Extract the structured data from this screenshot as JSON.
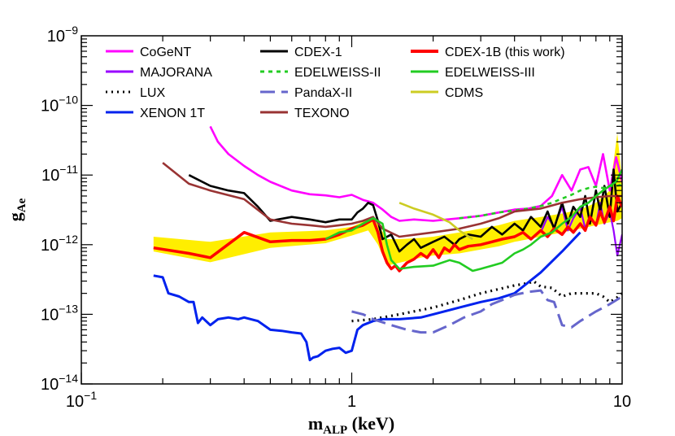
{
  "chart_data": {
    "type": "line",
    "title": "",
    "xscale": "log",
    "yscale": "log",
    "xlim": [
      0.1,
      10
    ],
    "ylim": [
      1e-14,
      1e-09
    ],
    "x_ticks": [
      {
        "value": 0.1,
        "base": "10",
        "exp": "−1"
      },
      {
        "value": 1,
        "base": "1",
        "exp": ""
      },
      {
        "value": 10,
        "base": "10",
        "exp": ""
      }
    ],
    "y_ticks": [
      {
        "value": 1e-14,
        "base": "10",
        "exp": "−14"
      },
      {
        "value": 1e-13,
        "base": "10",
        "exp": "−13"
      },
      {
        "value": 1e-12,
        "base": "10",
        "exp": "−12"
      },
      {
        "value": 1e-11,
        "base": "10",
        "exp": "−11"
      },
      {
        "value": 1e-10,
        "base": "10",
        "exp": "−10"
      },
      {
        "value": 1e-09,
        "base": "10",
        "exp": "−9"
      }
    ],
    "xlabel": {
      "main": "m",
      "sub": "ALP",
      "unit": " (keV)"
    },
    "ylabel": {
      "main": "g",
      "sub": "Ae"
    },
    "legend_position": "top",
    "band": {
      "name": "CDEX-1B expected sensitivity band",
      "color": "#ffee00",
      "x": [
        0.185,
        0.3,
        0.5,
        0.8,
        1.0,
        1.15,
        1.25,
        1.35,
        1.5,
        1.8,
        2.0,
        2.5,
        3.0,
        3.5,
        4.0,
        5.0,
        6.0,
        7.0,
        8.0,
        9.0,
        9.6,
        10.0
      ],
      "lower": [
        8e-13,
        5.6e-13,
        9e-13,
        1.05e-12,
        1.35e-12,
        1.6e-12,
        1e-12,
        5e-13,
        5.5e-13,
        6.5e-13,
        7e-13,
        7.5e-13,
        8.5e-13,
        9.5e-13,
        1.1e-12,
        1.3e-12,
        1.5e-12,
        1.7e-12,
        1.9e-12,
        2.1e-12,
        2.2e-12,
        2.4e-12
      ],
      "upper": [
        1.3e-12,
        1.1e-12,
        1.5e-12,
        1.6e-12,
        1.8e-12,
        2.3e-12,
        2e-12,
        1.2e-12,
        1.2e-12,
        1.25e-12,
        1.3e-12,
        1.5e-12,
        1.7e-12,
        1.9e-12,
        2.2e-12,
        2.5e-12,
        2.8e-12,
        3.2e-12,
        4e-12,
        6e-12,
        4e-11,
        8e-12
      ]
    },
    "series": [
      {
        "name": "CoGeNT",
        "color": "#ff00ff",
        "dash": "solid",
        "x": [
          0.3,
          0.32,
          0.35,
          0.4,
          0.45,
          0.5,
          0.6,
          0.7,
          0.8,
          0.9,
          1.0,
          1.1,
          1.2,
          1.3,
          1.4,
          1.5,
          1.7,
          2.0,
          2.5,
          3.0,
          3.5,
          4.0,
          4.5,
          5.0,
          5.5,
          6.0,
          6.5,
          7.0,
          7.5,
          8.0,
          8.5,
          9.0,
          9.5,
          10.0
        ],
        "y": [
          5e-11,
          3e-11,
          2e-11,
          1.35e-11,
          1e-11,
          8e-12,
          6e-12,
          5.3e-12,
          5.1e-12,
          4.8e-12,
          5.2e-12,
          4.4e-12,
          4e-12,
          3.2e-12,
          2.5e-12,
          2.2e-12,
          2.3e-12,
          2.2e-12,
          2.4e-12,
          2.6e-12,
          2.9e-12,
          3.2e-12,
          3.3e-12,
          3.6e-12,
          5e-12,
          1e-11,
          6e-12,
          1.2e-11,
          1.3e-11,
          7e-12,
          2e-11,
          6e-12,
          1.8e-11,
          8e-12
        ]
      },
      {
        "name": "MAJORANA",
        "color": "#9900ff",
        "dash": "solid",
        "x": [
          5.0,
          5.3,
          5.6,
          6.0,
          6.3,
          6.6,
          7.0,
          7.3,
          7.6,
          8.0,
          8.3,
          8.6,
          9.0,
          9.3,
          9.6,
          10.0
        ],
        "y": [
          1.5e-12,
          2.5e-12,
          1.8e-12,
          3.5e-12,
          1.6e-12,
          2.4e-12,
          3.4e-12,
          1.7e-12,
          2.5e-12,
          1.9e-12,
          4e-12,
          2e-12,
          3e-12,
          1.6e-12,
          7e-13,
          1.4e-12
        ]
      },
      {
        "name": "LUX",
        "color": "#000000",
        "dash": "dot",
        "x": [
          1.0,
          1.2,
          1.5,
          2.0,
          2.5,
          3.0,
          3.5,
          4.0,
          4.5,
          4.7,
          5.0,
          5.5,
          6.0,
          6.5,
          7.0,
          8.0,
          8.5,
          9.0,
          9.5,
          10.0
        ],
        "y": [
          8e-14,
          8.5e-14,
          1e-13,
          1.25e-13,
          1.6e-13,
          2e-13,
          2.3e-13,
          2.6e-13,
          2.8e-13,
          3e-13,
          2.5e-13,
          2.4e-13,
          1.8e-13,
          2e-13,
          2e-13,
          2e-13,
          1.8e-13,
          1.5e-13,
          1.7e-13,
          2e-13
        ]
      },
      {
        "name": "XENON 1T",
        "color": "#0022ee",
        "dash": "solid",
        "x": [
          0.185,
          0.2,
          0.21,
          0.23,
          0.25,
          0.26,
          0.27,
          0.28,
          0.3,
          0.32,
          0.35,
          0.38,
          0.4,
          0.45,
          0.5,
          0.55,
          0.6,
          0.65,
          0.68,
          0.7,
          0.72,
          0.75,
          0.8,
          0.85,
          0.9,
          0.95,
          1.0,
          1.05,
          1.1,
          1.2,
          1.3,
          1.5,
          1.8,
          2.0,
          2.5,
          3.0,
          3.5,
          4.0,
          5.0,
          6.0,
          7.0
        ],
        "y": [
          3.6e-13,
          3.4e-13,
          2e-13,
          1.8e-13,
          1.5e-13,
          1.5e-13,
          7.5e-14,
          9e-14,
          7e-14,
          8.5e-14,
          9e-14,
          8.5e-14,
          9e-14,
          8e-14,
          6e-14,
          5.8e-14,
          5.5e-14,
          5.3e-14,
          4e-14,
          2.2e-14,
          2.4e-14,
          2.5e-14,
          3e-14,
          3.2e-14,
          3.3e-14,
          2.8e-14,
          3e-14,
          6e-14,
          7e-14,
          8e-14,
          8.5e-14,
          8.5e-14,
          9e-14,
          1e-13,
          1.25e-13,
          1.5e-13,
          1.7e-13,
          2e-13,
          4e-13,
          8e-13,
          1.5e-12
        ]
      },
      {
        "name": "CDEX-1",
        "color": "#000000",
        "dash": "solid",
        "x": [
          0.25,
          0.3,
          0.35,
          0.4,
          0.45,
          0.5,
          0.6,
          0.7,
          0.8,
          0.9,
          1.0,
          1.05,
          1.1,
          1.15,
          1.2,
          1.25,
          1.3,
          1.4,
          1.5,
          1.6,
          1.7,
          1.8,
          2.0,
          2.2,
          2.4,
          2.5,
          2.7,
          3.0,
          3.3,
          3.6,
          4.0,
          4.3,
          4.6,
          5.0,
          5.3,
          5.6,
          6.0,
          6.3,
          6.6,
          7.0,
          7.3,
          7.6,
          8.0,
          8.3,
          8.6,
          9.0,
          9.3,
          9.6,
          10.0
        ],
        "y": [
          1e-11,
          7e-12,
          6e-12,
          5.5e-12,
          3.5e-12,
          2.2e-12,
          2.5e-12,
          2.3e-12,
          2.1e-12,
          2.3e-12,
          2.3e-12,
          2.9e-12,
          3.3e-12,
          4e-12,
          3.7e-12,
          2.2e-12,
          1.2e-12,
          1.4e-12,
          8e-13,
          1e-12,
          1.2e-12,
          9e-13,
          1.1e-12,
          1.3e-12,
          1e-12,
          1.2e-12,
          1.4e-12,
          1.3e-12,
          1.8e-12,
          1.4e-12,
          2e-12,
          1.6e-12,
          2.5e-12,
          1.8e-12,
          3e-12,
          1.7e-12,
          4e-12,
          2e-12,
          3.5e-12,
          2.5e-12,
          5e-12,
          2e-12,
          6e-12,
          3e-12,
          7e-12,
          2.5e-12,
          1.2e-11,
          3e-12,
          4e-12
        ]
      },
      {
        "name": "EDELWEISS-II",
        "color": "#22cc22",
        "dash": "dash",
        "x": [
          2.5,
          3.0,
          3.5,
          4.0,
          4.5,
          5.0,
          5.5,
          6.0,
          6.5,
          7.0,
          7.5,
          8.0,
          8.5,
          9.0,
          9.5,
          10.0
        ],
        "y": [
          2.4e-12,
          2.6e-12,
          2.9e-12,
          3.1e-12,
          3.3e-12,
          3.6e-12,
          4e-12,
          4.6e-12,
          5.2e-12,
          6e-12,
          6.5e-12,
          6.8e-12,
          6.5e-12,
          7e-12,
          7e-12,
          7.3e-12
        ]
      },
      {
        "name": "PandaX-II",
        "color": "#6666cc",
        "dash": "longdash",
        "x": [
          1.0,
          1.1,
          1.2,
          1.4,
          1.6,
          1.8,
          2.0,
          2.3,
          2.6,
          3.0,
          3.3,
          3.6,
          4.0,
          4.5,
          5.0,
          5.3,
          5.6,
          6.0,
          6.5,
          7.0,
          8.0,
          9.0,
          10.0
        ],
        "y": [
          1.1e-13,
          1e-13,
          8.5e-14,
          7e-14,
          6e-14,
          5.5e-14,
          5.5e-14,
          7e-14,
          9e-14,
          1.1e-13,
          1.4e-13,
          1.6e-13,
          1.9e-13,
          2.1e-13,
          2.2e-13,
          1.6e-13,
          1.5e-13,
          7e-14,
          6.5e-14,
          8e-14,
          1.1e-13,
          1.4e-13,
          1.8e-13
        ]
      },
      {
        "name": "TEXONO",
        "color": "#993333",
        "dash": "solid",
        "x": [
          0.2,
          0.25,
          0.3,
          0.4,
          0.5,
          0.6,
          0.7,
          0.8,
          0.9,
          1.0,
          1.1,
          1.2,
          1.3,
          1.5,
          2.0,
          2.5,
          3.0,
          3.5,
          4.0,
          5.0,
          6.0,
          7.0,
          8.0,
          9.0,
          10.0
        ],
        "y": [
          1.5e-11,
          7.5e-12,
          6e-12,
          4.5e-12,
          2.3e-12,
          2e-12,
          1.9e-12,
          1.8e-12,
          1.9e-12,
          2e-12,
          2.2e-12,
          2.5e-12,
          1.7e-12,
          1.3e-12,
          1.5e-12,
          1.7e-12,
          2e-12,
          2.4e-12,
          3e-12,
          3.3e-12,
          4e-12,
          4.5e-12,
          4.8e-12,
          5e-12,
          5e-12
        ]
      },
      {
        "name": "CDEX-1B (this work)",
        "color": "#ff0000",
        "dash": "solid",
        "x": [
          0.185,
          0.25,
          0.3,
          0.4,
          0.5,
          0.6,
          0.7,
          0.8,
          0.9,
          1.0,
          1.1,
          1.2,
          1.25,
          1.3,
          1.35,
          1.4,
          1.45,
          1.5,
          1.6,
          1.7,
          1.8,
          1.9,
          2.0,
          2.1,
          2.2,
          2.3,
          2.4,
          2.5,
          2.7,
          3.0,
          3.3,
          3.6,
          4.0,
          4.3,
          4.6,
          5.0,
          5.3,
          5.6,
          6.0,
          6.3,
          6.6,
          7.0,
          7.3,
          7.6,
          8.0,
          8.3,
          8.6,
          9.0,
          9.3,
          9.6,
          10.0
        ],
        "y": [
          9e-13,
          7.5e-13,
          6.5e-13,
          1.5e-12,
          1.1e-12,
          1.15e-12,
          1.15e-12,
          1.2e-12,
          1.4e-12,
          1.7e-12,
          1.9e-12,
          2.3e-12,
          1.5e-12,
          8e-13,
          5.5e-13,
          4.5e-13,
          5e-13,
          4.2e-13,
          5.5e-13,
          6.2e-13,
          7.5e-13,
          6.5e-13,
          8.5e-13,
          6.5e-13,
          9e-13,
          8e-13,
          1e-12,
          8.5e-13,
          9.5e-13,
          1e-12,
          1.1e-12,
          1.2e-12,
          1.3e-12,
          1.5e-12,
          1.2e-12,
          1.6e-12,
          1.3e-12,
          1.7e-12,
          1.4e-12,
          1.8e-12,
          1.5e-12,
          2e-12,
          1.6e-12,
          2.5e-12,
          1.9e-12,
          3e-12,
          2.1e-12,
          3.5e-12,
          2.2e-12,
          5e-12,
          3.5e-12
        ]
      },
      {
        "name": "EDELWEISS-III",
        "color": "#22cc22",
        "dash": "solid",
        "x": [
          0.8,
          0.9,
          1.0,
          1.1,
          1.2,
          1.3,
          1.35,
          1.4,
          1.5,
          1.7,
          2.0,
          2.3,
          2.5,
          2.8,
          3.0,
          3.3,
          3.6,
          4.0,
          4.3,
          4.6,
          5.0,
          5.5,
          6.0,
          6.5,
          7.0,
          7.5,
          8.0,
          8.5,
          9.0,
          9.5,
          10.0
        ],
        "y": [
          1.2e-12,
          1.5e-12,
          1.6e-12,
          2e-12,
          2.4e-12,
          2e-12,
          1e-12,
          6e-13,
          4.5e-13,
          4.8e-13,
          5e-13,
          6e-13,
          5.5e-13,
          4.2e-13,
          4.5e-13,
          5e-13,
          5.5e-13,
          7.5e-13,
          8.5e-13,
          1e-12,
          1.3e-12,
          1.5e-12,
          2e-12,
          2.5e-12,
          3.5e-12,
          4e-12,
          5e-12,
          6e-12,
          7e-12,
          8e-12,
          1.2e-11
        ]
      },
      {
        "name": "CDMS",
        "color": "#cccc22",
        "dash": "solid",
        "x": [
          1.5,
          1.7,
          2.0,
          2.3,
          2.5,
          2.8
        ],
        "y": [
          4e-12,
          3.3e-12,
          2.7e-12,
          2.1e-12,
          1.6e-12,
          1.2e-12
        ]
      }
    ]
  },
  "legend": [
    {
      "label": "CoGeNT",
      "color": "#ff00ff",
      "dash": "solid"
    },
    {
      "label": "CDEX-1",
      "color": "#000000",
      "dash": "solid"
    },
    {
      "label": "CDEX-1B (this work)",
      "color": "#ff0000",
      "dash": "solid"
    },
    {
      "label": "MAJORANA",
      "color": "#9900ff",
      "dash": "solid"
    },
    {
      "label": "EDELWEISS-II",
      "color": "#22cc22",
      "dash": "dash"
    },
    {
      "label": "EDELWEISS-III",
      "color": "#22cc22",
      "dash": "solid"
    },
    {
      "label": "LUX",
      "color": "#000000",
      "dash": "dot"
    },
    {
      "label": "PandaX-II",
      "color": "#6666cc",
      "dash": "longdash"
    },
    {
      "label": "CDMS",
      "color": "#cccc22",
      "dash": "solid"
    },
    {
      "label": "XENON 1T",
      "color": "#0022ee",
      "dash": "solid"
    },
    {
      "label": "TEXONO",
      "color": "#993333",
      "dash": "solid"
    }
  ]
}
